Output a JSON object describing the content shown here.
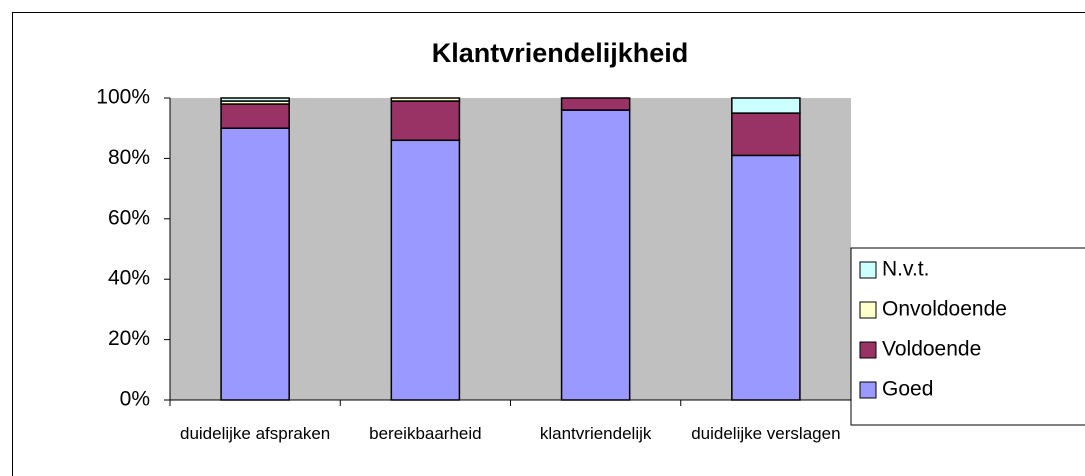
{
  "chart_data": {
    "type": "stacked_bar",
    "title": "Klantvriendelijkheid",
    "categories": [
      "duidelijke afspraken",
      "bereikbaarheid",
      "klantvriendelijk",
      "duidelijke verslagen"
    ],
    "series": [
      {
        "name": "Goed",
        "color": "#9999ff",
        "values": [
          90,
          86,
          96,
          81
        ]
      },
      {
        "name": "Voldoende",
        "color": "#993366",
        "values": [
          8,
          13,
          4,
          14
        ]
      },
      {
        "name": "Onvoldoende",
        "color": "#ffffcc",
        "values": [
          1,
          1,
          0,
          0
        ]
      },
      {
        "name": "N.v.t.",
        "color": "#ccffff",
        "values": [
          1,
          0,
          0,
          5
        ]
      }
    ],
    "ylim": [
      0,
      100
    ],
    "yticks": [
      {
        "value": 0,
        "label": "0%"
      },
      {
        "value": 20,
        "label": "20%"
      },
      {
        "value": 40,
        "label": "40%"
      },
      {
        "value": 60,
        "label": "60%"
      },
      {
        "value": 80,
        "label": "80%"
      },
      {
        "value": 100,
        "label": "100%"
      }
    ],
    "grid": false,
    "legend": "right",
    "plot_background": "#c0c0c0"
  }
}
